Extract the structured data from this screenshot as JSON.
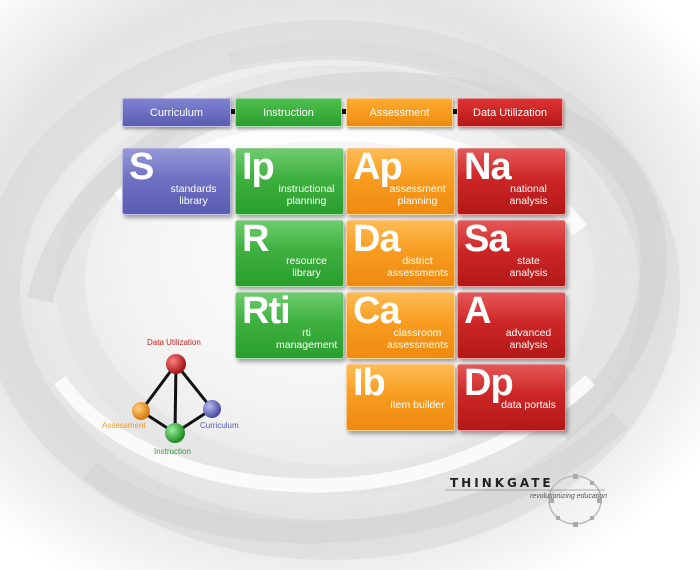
{
  "columns": [
    {
      "label": "Curriculum",
      "color": "#6b6dc0"
    },
    {
      "label": "Instruction",
      "color": "#35ad38"
    },
    {
      "label": "Assessment",
      "color": "#f6981e"
    },
    {
      "label": "Data Utilization",
      "color": "#c82323"
    }
  ],
  "tiles": {
    "S": {
      "symbol": "S",
      "name": "standards library"
    },
    "Ip": {
      "symbol": "Ip",
      "name": "instructional planning"
    },
    "R": {
      "symbol": "R",
      "name": "resource library"
    },
    "Rti": {
      "symbol": "Rti",
      "name": "rti management"
    },
    "Ap": {
      "symbol": "Ap",
      "name": "assessment planning"
    },
    "Da": {
      "symbol": "Da",
      "name": "district assessments"
    },
    "Ca": {
      "symbol": "Ca",
      "name": "classroom assessments"
    },
    "Ib": {
      "symbol": "Ib",
      "name": "item builder"
    },
    "Na": {
      "symbol": "Na",
      "name": "national analysis"
    },
    "Sa": {
      "symbol": "Sa",
      "name": "state analysis"
    },
    "A": {
      "symbol": "A",
      "name": "advanced analysis"
    },
    "Dp": {
      "symbol": "Dp",
      "name": "data portals"
    }
  },
  "tetrahedron": {
    "top": "Data Utilization",
    "left": "Assessment",
    "right": "Curriculum",
    "bottom": "Instruction"
  },
  "logo": {
    "word": "THINKGATE",
    "tagline": "revolutionizing education"
  }
}
